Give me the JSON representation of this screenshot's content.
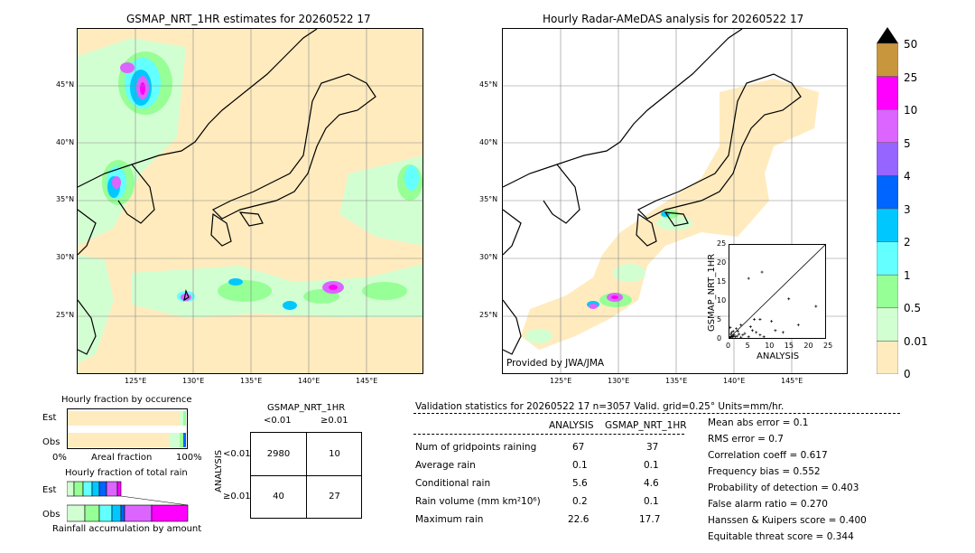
{
  "left_map": {
    "title": "GSMAP_NRT_1HR estimates for 20260522 17",
    "lat_labels": [
      "45°N",
      "40°N",
      "35°N",
      "30°N",
      "25°N"
    ],
    "lon_labels": [
      "125°E",
      "130°E",
      "135°E",
      "140°E",
      "145°E"
    ]
  },
  "right_map": {
    "title": "Hourly Radar-AMeDAS analysis for 20260522 17",
    "lat_labels": [
      "45°N",
      "40°N",
      "35°N",
      "30°N",
      "25°N"
    ],
    "lon_labels": [
      "125°E",
      "130°E",
      "135°E",
      "140°E",
      "145°E"
    ],
    "credit": "Provided by JWA/JMA"
  },
  "colorbar": {
    "labels": [
      "50",
      "25",
      "10",
      "5",
      "4",
      "3",
      "2",
      "1",
      "0.5",
      "0.01",
      "0"
    ],
    "colors": [
      "#c8963c",
      "#ff00ff",
      "#dc64ff",
      "#9664ff",
      "#0064ff",
      "#00c8ff",
      "#64ffff",
      "#96ff96",
      "#d2ffd2",
      "#ffebbe"
    ]
  },
  "chart_data": {
    "type": "scatter",
    "title": "",
    "xlabel": "ANALYSIS",
    "ylabel": "GSMAP_NRT_1HR",
    "xlim": [
      0,
      25
    ],
    "ylim": [
      0,
      25
    ],
    "x_ticks": [
      "0",
      "5",
      "10",
      "15",
      "20",
      "25"
    ],
    "y_ticks": [
      "0",
      "5",
      "10",
      "15",
      "20",
      "25"
    ],
    "points": [
      [
        0.1,
        0.1
      ],
      [
        0.3,
        0.2
      ],
      [
        0.5,
        0.4
      ],
      [
        0.8,
        0.3
      ],
      [
        1.0,
        0.5
      ],
      [
        1.2,
        0.8
      ],
      [
        1.5,
        0.3
      ],
      [
        0.4,
        1.0
      ],
      [
        0.6,
        1.5
      ],
      [
        1.0,
        1.8
      ],
      [
        2.0,
        0.5
      ],
      [
        2.5,
        1.0
      ],
      [
        3.0,
        0.2
      ],
      [
        1.8,
        2.5
      ],
      [
        4.0,
        1.2
      ],
      [
        5.0,
        0.3
      ],
      [
        6.0,
        2.0
      ],
      [
        7.0,
        1.5
      ],
      [
        8.0,
        0.8
      ],
      [
        9.0,
        0.3
      ],
      [
        3.0,
        3.5
      ],
      [
        5.5,
        3.0
      ],
      [
        8.0,
        5.0
      ],
      [
        11.0,
        4.5
      ],
      [
        12.0,
        2.0
      ],
      [
        14.0,
        1.5
      ],
      [
        18.0,
        3.5
      ],
      [
        22.6,
        8.5
      ],
      [
        15.5,
        10.5
      ],
      [
        5.0,
        16.0
      ],
      [
        8.5,
        17.7
      ],
      [
        6.5,
        5.0
      ],
      [
        2.2,
        1.8
      ],
      [
        0.2,
        2.8
      ],
      [
        3.5,
        0.8
      ]
    ]
  },
  "occurrence": {
    "title": "Hourly fraction by occurence",
    "row_est": "Est",
    "row_obs": "Obs",
    "axis_left": "0%",
    "axis_mid": "Areal fraction",
    "axis_right": "100%"
  },
  "rain_total": {
    "title": "Hourly fraction of total rain",
    "row_est": "Est",
    "row_obs": "Obs",
    "footer": "Rainfall accumulation by amount"
  },
  "contingency": {
    "header": "GSMAP_NRT_1HR",
    "col_lt": "<0.01",
    "col_ge": "≥0.01",
    "side": "ANALYSIS",
    "row_lt": "<0.01",
    "row_ge": "≥0.01",
    "a": "2980",
    "b": "10",
    "c": "40",
    "d": "27"
  },
  "validation": {
    "header": "Validation statistics for 20260522 17  n=3057 Valid. grid=0.25° Units=mm/hr.",
    "col_analysis": "ANALYSIS",
    "col_gsmap": "GSMAP_NRT_1HR",
    "rows": [
      {
        "label": "Num of gridpoints raining",
        "analysis": "67",
        "gsmap": "37"
      },
      {
        "label": "Average rain",
        "analysis": "0.1",
        "gsmap": "0.1"
      },
      {
        "label": "Conditional rain",
        "analysis": "5.6",
        "gsmap": "4.6"
      },
      {
        "label": "Rain volume (mm km²10⁶)",
        "analysis": "0.2",
        "gsmap": "0.1"
      },
      {
        "label": "Maximum rain",
        "analysis": "22.6",
        "gsmap": "17.7"
      }
    ],
    "scores": [
      "Mean abs error =    0.1",
      "RMS error =    0.7",
      "Correlation coeff =  0.617",
      "Frequency bias =  0.552",
      "Probability of detection =  0.403",
      "False alarm ratio =  0.270",
      "Hanssen & Kuipers score =  0.400",
      "Equitable threat score =  0.344"
    ]
  }
}
